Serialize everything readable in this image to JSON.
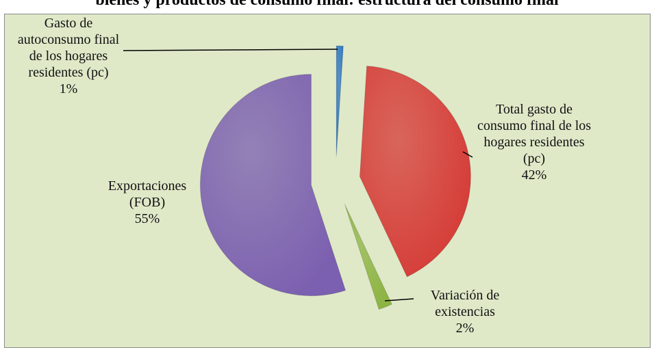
{
  "chart_data": {
    "type": "pie",
    "title": "bienes y productos de consumo final: estructura del consumo final",
    "categories": [
      "Gasto de autoconsumo final de los hogares residentes (pc)",
      "Total gasto de consumo final de los hogares residentes (pc)",
      "Variación de existencias",
      "Exportaciones (FOB)"
    ],
    "values": [
      1,
      42,
      2,
      55
    ],
    "value_labels": [
      "1%",
      "42%",
      "2%",
      "55%"
    ],
    "colors": [
      "#2e75c0",
      "#d63a36",
      "#8db443",
      "#7b5fb0"
    ]
  }
}
